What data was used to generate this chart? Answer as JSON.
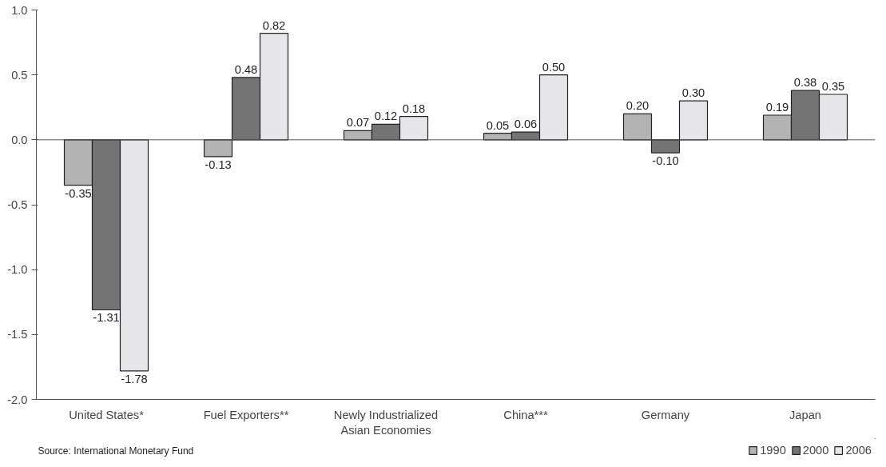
{
  "chart_data": {
    "type": "bar",
    "categories": [
      "United States*",
      "Fuel Exporters**",
      "Newly Industrialized\nAsian Economies",
      "China***",
      "Germany",
      "Japan"
    ],
    "series": [
      {
        "name": "1990",
        "color": "#b3b3b3",
        "values": [
          -0.35,
          -0.13,
          0.07,
          0.05,
          0.2,
          0.19
        ],
        "value_labels": [
          "-0.35",
          "-0.13",
          "0.07",
          "0.05",
          "0.20",
          "0.19"
        ]
      },
      {
        "name": "2000",
        "color": "#747474",
        "values": [
          -1.31,
          0.48,
          0.12,
          0.06,
          -0.1,
          0.38
        ],
        "value_labels": [
          "-1.31",
          "0.48",
          "0.12",
          "0.06",
          "-0.10",
          "0.38"
        ]
      },
      {
        "name": "2006",
        "color": "#e6e6e8",
        "values": [
          -1.78,
          0.82,
          0.18,
          0.5,
          0.3,
          0.35
        ],
        "value_labels": [
          "-1.78",
          "0.82",
          "0.18",
          "0.50",
          "0.30",
          "0.35"
        ]
      }
    ],
    "ylim": [
      -2.0,
      1.0
    ],
    "yticks": [
      {
        "value": -2.0,
        "label": "-2.0"
      },
      {
        "value": -1.5,
        "label": "-1.5"
      },
      {
        "value": -1.0,
        "label": "-1.0"
      },
      {
        "value": -0.5,
        "label": "-0.5"
      },
      {
        "value": 0,
        "label": "0.0"
      },
      {
        "value": 0.5,
        "label": "0.5"
      },
      {
        "value": 1.0,
        "label": "1.0"
      }
    ],
    "legend": "bottom right",
    "annotations": [
      "Source: International Monetary Fund"
    ]
  }
}
